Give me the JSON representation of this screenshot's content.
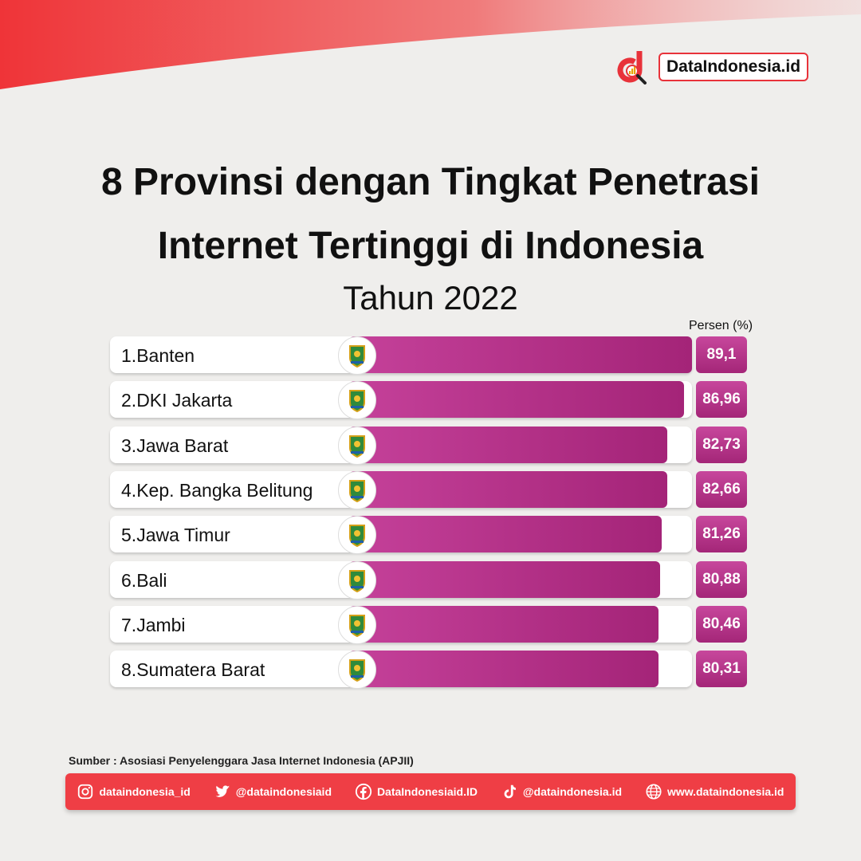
{
  "brand": {
    "name": "DataIndonesia.id",
    "accent": "#ef3e45",
    "bar_color": "#b0307f"
  },
  "chart_data": {
    "type": "bar",
    "title": "8 Provinsi dengan Tingkat Penetrasi Internet Tertinggi di Indonesia",
    "title_line1": "8 Provinsi dengan Tingkat Penetrasi",
    "title_line2": "Internet Tertinggi di Indonesia",
    "subtitle": "Tahun 2022",
    "unit_label": "Persen (%)",
    "categories": [
      "Banten",
      "DKI Jakarta",
      "Jawa Barat",
      "Kep. Bangka Belitung",
      "Jawa Timur",
      "Bali",
      "Jambi",
      "Sumatera Barat"
    ],
    "ranks": [
      "1.",
      "2.",
      "3.",
      "4.",
      "5.",
      "6.",
      "7.",
      "8."
    ],
    "values": [
      89.1,
      86.96,
      82.73,
      82.66,
      81.26,
      80.88,
      80.46,
      80.31
    ],
    "value_labels": [
      "89,1",
      "86,96",
      "82,73",
      "82,66",
      "81,26",
      "80,88",
      "80,46",
      "80,31"
    ],
    "icons": [
      "banten-emblem-icon",
      "dki-jakarta-emblem-icon",
      "jawa-barat-emblem-icon",
      "bangka-belitung-emblem-icon",
      "jawa-timur-emblem-icon",
      "bali-emblem-icon",
      "jambi-emblem-icon",
      "sumatera-barat-emblem-icon"
    ]
  },
  "source": "Sumber : Asosiasi Penyelenggara Jasa Internet Indonesia (APJII)",
  "footer": {
    "instagram": "dataindonesia_id",
    "twitter": "@dataindonesiaid",
    "facebook": "DataIndonesiaid.ID",
    "tiktok": "@dataindonesia.id",
    "website": "www.dataindonesia.id"
  }
}
